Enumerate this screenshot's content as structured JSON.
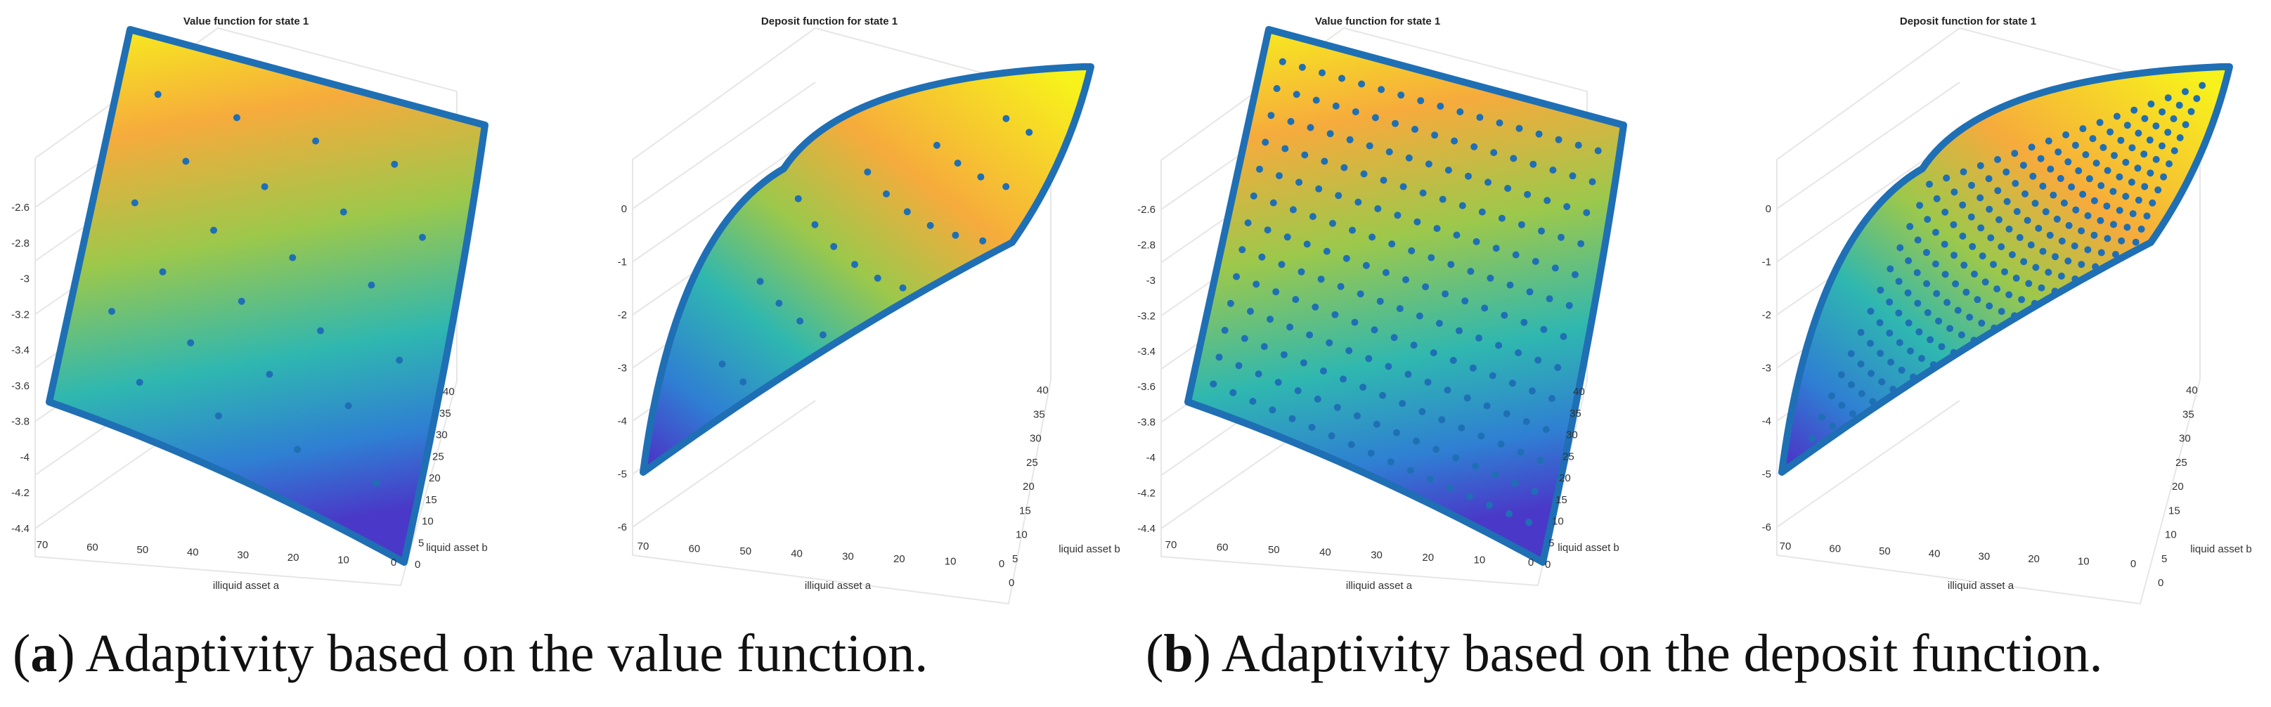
{
  "figure": {
    "panels": [
      {
        "title": "Value function for state 1",
        "z_ticks": [
          "-2.6",
          "-2.8",
          "-3",
          "-3.2",
          "-3.4",
          "-3.6",
          "-3.8",
          "-4",
          "-4.2",
          "-4.4"
        ],
        "x_ticks": [
          "70",
          "60",
          "50",
          "40",
          "30",
          "20",
          "10",
          "0"
        ],
        "y_ticks": [
          "0",
          "5",
          "10",
          "15",
          "20",
          "25",
          "30",
          "35",
          "40"
        ],
        "x_label": "illiquid asset a",
        "y_label": "liquid asset b"
      },
      {
        "title": "Deposit function for state 1",
        "z_ticks": [
          "0",
          "-1",
          "-2",
          "-3",
          "-4",
          "-5",
          "-6"
        ],
        "x_ticks": [
          "70",
          "60",
          "50",
          "40",
          "30",
          "20",
          "10",
          "0"
        ],
        "y_ticks": [
          "0",
          "5",
          "10",
          "15",
          "20",
          "25",
          "30",
          "35",
          "40"
        ],
        "x_label": "illiquid asset a",
        "y_label": "liquid asset b"
      },
      {
        "title": "Value function for state 1",
        "z_ticks": [
          "-2.6",
          "-2.8",
          "-3",
          "-3.2",
          "-3.4",
          "-3.6",
          "-3.8",
          "-4",
          "-4.2",
          "-4.4"
        ],
        "x_ticks": [
          "70",
          "60",
          "50",
          "40",
          "30",
          "20",
          "10",
          "0"
        ],
        "y_ticks": [
          "0",
          "5",
          "10",
          "15",
          "20",
          "25",
          "30",
          "35",
          "40"
        ],
        "x_label": "illiquid asset a",
        "y_label": "liquid asset b"
      },
      {
        "title": "Deposit function for state 1",
        "z_ticks": [
          "0",
          "-1",
          "-2",
          "-3",
          "-4",
          "-5",
          "-6"
        ],
        "x_ticks": [
          "70",
          "60",
          "50",
          "40",
          "30",
          "20",
          "10",
          "0"
        ],
        "y_ticks": [
          "0",
          "5",
          "10",
          "15",
          "20",
          "25",
          "30",
          "35",
          "40"
        ],
        "x_label": "illiquid asset a",
        "y_label": "liquid asset b"
      }
    ]
  },
  "captions": {
    "a_letter": "a",
    "a_text": "Adaptivity based on the value function.",
    "b_letter": "b",
    "b_text": "Adaptivity based on the deposit function."
  },
  "colors": {
    "grid_points": "#1f6fb5",
    "surface_high": "#f7f11c",
    "surface_mid_orange": "#f6ab3c",
    "surface_mid": "#2fb7b0",
    "surface_low": "#4a38c8",
    "axis_grid": "#e6e6e6",
    "tick_text": "#333333"
  }
}
